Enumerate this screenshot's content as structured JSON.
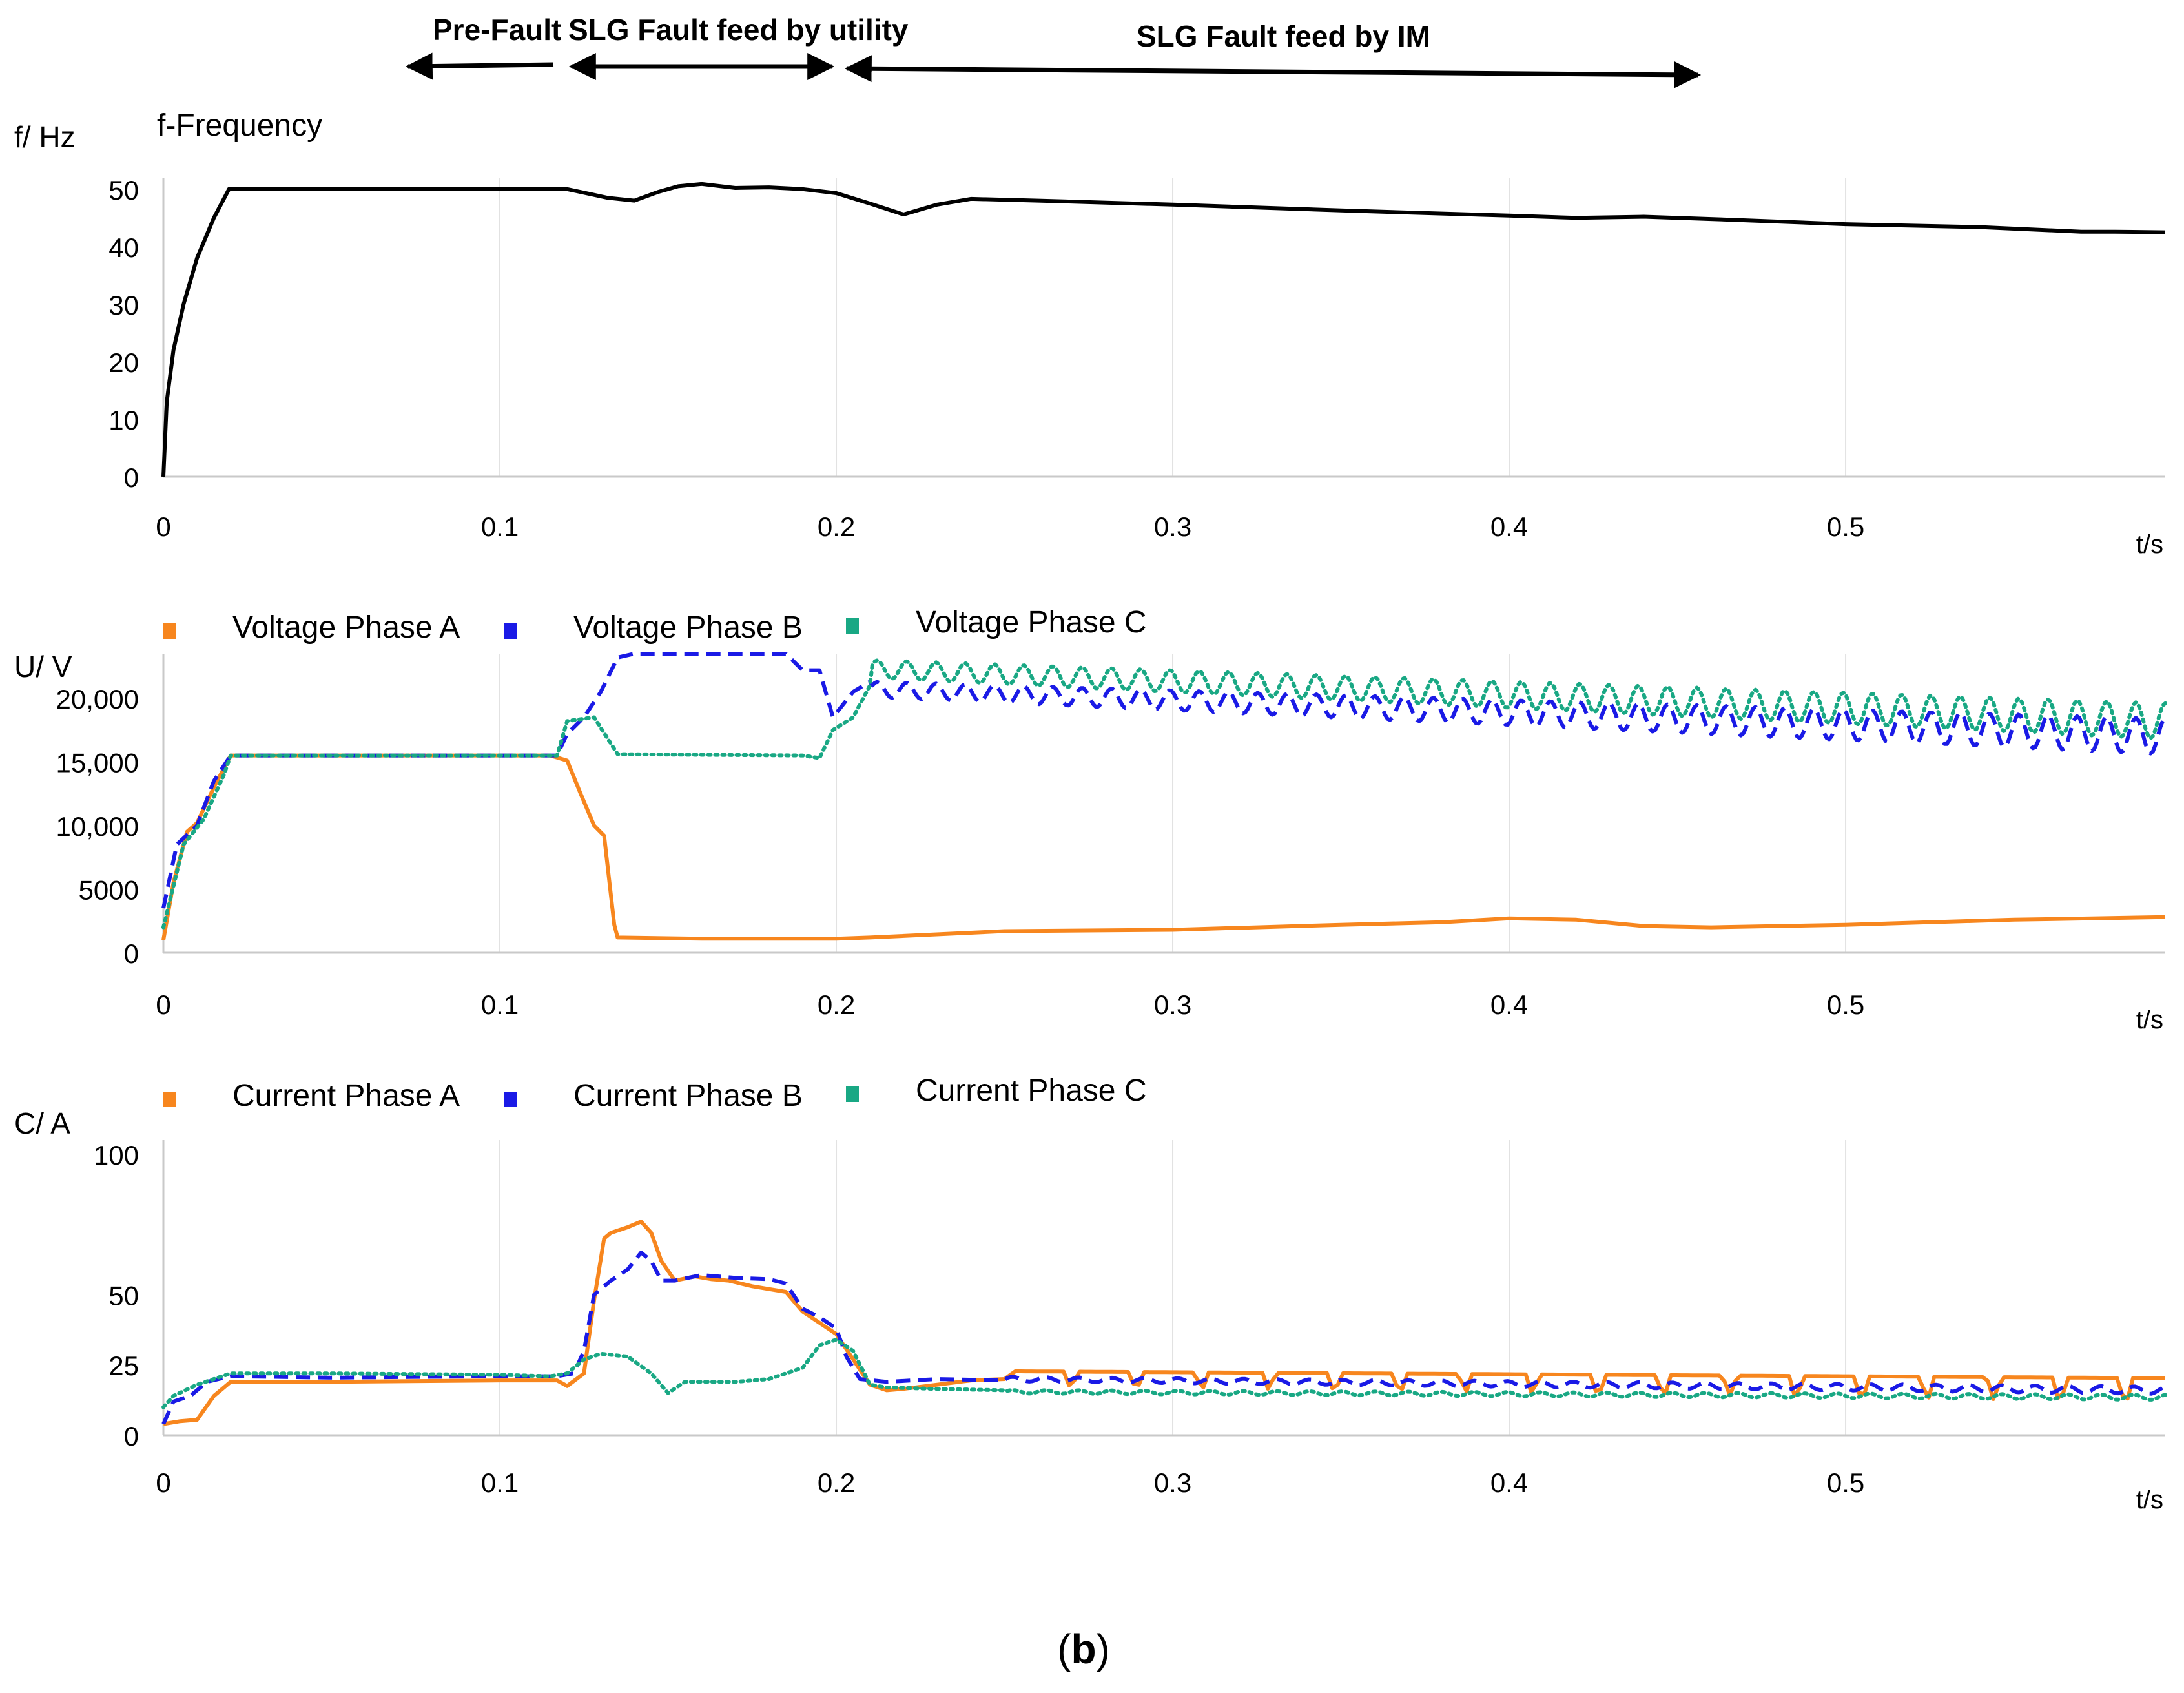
{
  "figure": {
    "caption_paren_open": "(",
    "caption_letter": "b",
    "caption_paren_close": ")"
  },
  "annotations": {
    "pre_fault": "Pre-Fault",
    "fault_utility": "SLG Fault feed by utility",
    "fault_im": "SLG Fault feed by IM"
  },
  "colors": {
    "phase_a": "#f7861e",
    "phase_b": "#1a1ae6",
    "phase_c": "#19a884",
    "frequency": "#000000",
    "grid": "#e2e2e2",
    "axis": "#c9c9c9"
  },
  "chart_data": [
    {
      "id": "freq",
      "type": "line",
      "title": "f-Frequency",
      "ylabel": "f/ Hz",
      "xlabel": "t/s",
      "xlim": [
        0,
        0.595
      ],
      "ylim": [
        0,
        52
      ],
      "xticks": [
        0,
        0.1,
        0.2,
        0.3,
        0.4,
        0.5
      ],
      "xtick_labels": [
        "0",
        "0.1",
        "0.2",
        "0.3",
        "0.4",
        "0.5"
      ],
      "yticks": [
        0,
        10,
        20,
        30,
        40,
        50
      ],
      "ytick_labels": [
        "0",
        "10",
        "20",
        "30",
        "40",
        "50"
      ],
      "legend": [],
      "series": [
        {
          "name": "f-Frequency",
          "color": "#000000",
          "style": "solid",
          "points": [
            [
              0,
              0
            ],
            [
              0.001,
              13
            ],
            [
              0.003,
              22
            ],
            [
              0.006,
              30
            ],
            [
              0.01,
              38
            ],
            [
              0.015,
              45
            ],
            [
              0.0195,
              50
            ],
            [
              0.05,
              50
            ],
            [
              0.1,
              50
            ],
            [
              0.12,
              50
            ],
            [
              0.128,
              49
            ],
            [
              0.132,
              48.5
            ],
            [
              0.14,
              48
            ],
            [
              0.147,
              49.5
            ],
            [
              0.153,
              50.5
            ],
            [
              0.16,
              50.9
            ],
            [
              0.17,
              50.2
            ],
            [
              0.18,
              50.3
            ],
            [
              0.19,
              50
            ],
            [
              0.2,
              49.3
            ],
            [
              0.21,
              47.5
            ],
            [
              0.22,
              45.6
            ],
            [
              0.23,
              47.3
            ],
            [
              0.24,
              48.3
            ],
            [
              0.26,
              48
            ],
            [
              0.3,
              47.3
            ],
            [
              0.35,
              46.3
            ],
            [
              0.4,
              45.4
            ],
            [
              0.42,
              45
            ],
            [
              0.44,
              45.2
            ],
            [
              0.46,
              44.8
            ],
            [
              0.5,
              43.9
            ],
            [
              0.54,
              43.4
            ],
            [
              0.57,
              42.6
            ],
            [
              0.58,
              42.6
            ],
            [
              0.595,
              42.5
            ]
          ]
        }
      ]
    },
    {
      "id": "voltage",
      "type": "line",
      "title": "",
      "ylabel": "U/ V",
      "xlabel": "t/s",
      "xlim": [
        0,
        0.595
      ],
      "ylim": [
        0,
        23500
      ],
      "xticks": [
        0,
        0.1,
        0.2,
        0.3,
        0.4,
        0.5
      ],
      "xtick_labels": [
        "0",
        "0.1",
        "0.2",
        "0.3",
        "0.4",
        "0.5"
      ],
      "yticks": [
        0,
        5000,
        10000,
        15000,
        20000
      ],
      "ytick_labels": [
        "0",
        "5000",
        "10,000",
        "15,000",
        "20,000"
      ],
      "legend": [
        "Voltage Phase A",
        "Voltage Phase B",
        "Voltage Phase C"
      ],
      "series": [
        {
          "name": "Voltage Phase A",
          "color": "#f7861e",
          "style": "solid",
          "points": [
            [
              0,
              1000
            ],
            [
              0.003,
              5500
            ],
            [
              0.007,
              9500
            ],
            [
              0.01,
              10200
            ],
            [
              0.015,
              13000
            ],
            [
              0.02,
              15500
            ],
            [
              0.05,
              15500
            ],
            [
              0.1,
              15500
            ],
            [
              0.115,
              15500
            ],
            [
              0.12,
              15100
            ],
            [
              0.124,
              12500
            ],
            [
              0.128,
              10000
            ],
            [
              0.131,
              9200
            ],
            [
              0.134,
              2200
            ],
            [
              0.135,
              1200
            ],
            [
              0.16,
              1100
            ],
            [
              0.2,
              1100
            ],
            [
              0.21,
              1200
            ],
            [
              0.25,
              1700
            ],
            [
              0.3,
              1800
            ],
            [
              0.35,
              2200
            ],
            [
              0.38,
              2400
            ],
            [
              0.4,
              2700
            ],
            [
              0.42,
              2600
            ],
            [
              0.44,
              2100
            ],
            [
              0.46,
              2000
            ],
            [
              0.5,
              2200
            ],
            [
              0.55,
              2600
            ],
            [
              0.595,
              2800
            ]
          ]
        },
        {
          "name": "Voltage Phase B",
          "color": "#1a1ae6",
          "style": "dashed",
          "points": [
            [
              0,
              3500
            ],
            [
              0.004,
              8500
            ],
            [
              0.01,
              10000
            ],
            [
              0.015,
              13500
            ],
            [
              0.02,
              15500
            ],
            [
              0.1,
              15500
            ],
            [
              0.117,
              15500
            ],
            [
              0.12,
              17200
            ],
            [
              0.125,
              18500
            ],
            [
              0.13,
              20500
            ],
            [
              0.135,
              23200
            ],
            [
              0.14,
              23500
            ],
            [
              0.185,
              23500
            ],
            [
              0.19,
              22200
            ],
            [
              0.195,
              22200
            ],
            [
              0.199,
              18500
            ],
            [
              0.205,
              20500
            ],
            [
              0.21,
              21300
            ]
          ],
          "osc": {
            "from": 0.21,
            "to": 0.595,
            "period": 0.0087,
            "mean": [
              20700,
              17000
            ],
            "amp": [
              600,
              1400
            ]
          }
        },
        {
          "name": "Voltage Phase C",
          "color": "#19a884",
          "style": "dotted",
          "points": [
            [
              0,
              2000
            ],
            [
              0.006,
              8500
            ],
            [
              0.012,
              10500
            ],
            [
              0.018,
              14000
            ],
            [
              0.02,
              15500
            ],
            [
              0.1,
              15500
            ],
            [
              0.117,
              15500
            ],
            [
              0.12,
              18200
            ],
            [
              0.128,
              18500
            ],
            [
              0.135,
              15600
            ],
            [
              0.19,
              15500
            ],
            [
              0.195,
              15300
            ],
            [
              0.199,
              17500
            ],
            [
              0.205,
              18500
            ],
            [
              0.21,
              21000
            ]
          ],
          "osc": {
            "from": 0.21,
            "to": 0.595,
            "period": 0.0087,
            "mean": [
              22300,
              18200
            ],
            "amp": [
              700,
              1400
            ]
          }
        }
      ]
    },
    {
      "id": "current",
      "type": "line",
      "title": "",
      "ylabel": "C/ A",
      "xlabel": "t/s",
      "xlim": [
        0,
        0.595
      ],
      "ylim": [
        0,
        105
      ],
      "xticks": [
        0,
        0.1,
        0.2,
        0.3,
        0.4,
        0.5
      ],
      "xtick_labels": [
        "0",
        "0.1",
        "0.2",
        "0.3",
        "0.4",
        "0.5"
      ],
      "yticks": [
        0,
        25,
        50,
        100
      ],
      "ytick_labels": [
        "0",
        "25",
        "50",
        "100"
      ],
      "tick_positions": [
        0,
        0.14,
        0.3,
        0.575
      ],
      "legend": [
        "Current Phase A",
        "Current Phase B",
        "Current Phase C"
      ],
      "series": [
        {
          "name": "Current Phase A",
          "color": "#f7861e",
          "style": "solid",
          "points": [
            [
              0,
              4
            ],
            [
              0.005,
              5
            ],
            [
              0.01,
              5.5
            ],
            [
              0.015,
              14
            ],
            [
              0.02,
              19
            ],
            [
              0.05,
              19
            ],
            [
              0.1,
              19.5
            ],
            [
              0.117,
              19.5
            ],
            [
              0.12,
              17.5
            ],
            [
              0.125,
              22
            ],
            [
              0.128,
              48
            ],
            [
              0.131,
              70
            ],
            [
              0.133,
              72
            ],
            [
              0.138,
              74
            ],
            [
              0.142,
              76
            ],
            [
              0.145,
              72
            ],
            [
              0.148,
              62
            ],
            [
              0.152,
              55
            ],
            [
              0.158,
              56.5
            ],
            [
              0.163,
              55.5
            ],
            [
              0.168,
              55
            ],
            [
              0.175,
              53
            ],
            [
              0.18,
              52
            ],
            [
              0.185,
              51
            ],
            [
              0.19,
              44
            ],
            [
              0.195,
              40
            ],
            [
              0.2,
              36
            ],
            [
              0.205,
              27
            ],
            [
              0.21,
              18
            ],
            [
              0.215,
              16
            ],
            [
              0.22,
              16.5
            ],
            [
              0.23,
              18
            ],
            [
              0.24,
              19.5
            ],
            [
              0.25,
              20
            ]
          ],
          "osc": {
            "from": 0.25,
            "to": 0.595,
            "period": 0.0196,
            "mean": [
              22,
              19
            ],
            "amp": [
              1.3,
              2.2
            ],
            "dip": true
          }
        },
        {
          "name": "Current Phase B",
          "color": "#1a1ae6",
          "style": "dashed",
          "points": [
            [
              0,
              4
            ],
            [
              0.003,
              12
            ],
            [
              0.008,
              14
            ],
            [
              0.013,
              19
            ],
            [
              0.02,
              21
            ],
            [
              0.05,
              20.5
            ],
            [
              0.1,
              21
            ],
            [
              0.117,
              21
            ],
            [
              0.122,
              22
            ],
            [
              0.125,
              30
            ],
            [
              0.128,
              50
            ],
            [
              0.133,
              55
            ],
            [
              0.138,
              59
            ],
            [
              0.142,
              65
            ],
            [
              0.145,
              62
            ],
            [
              0.148,
              55
            ],
            [
              0.152,
              55
            ],
            [
              0.16,
              57
            ],
            [
              0.17,
              56
            ],
            [
              0.18,
              55.5
            ],
            [
              0.185,
              54
            ],
            [
              0.19,
              45
            ],
            [
              0.195,
              42
            ],
            [
              0.2,
              38
            ],
            [
              0.203,
              28
            ],
            [
              0.207,
              20
            ],
            [
              0.215,
              19
            ],
            [
              0.23,
              20
            ],
            [
              0.25,
              19.5
            ]
          ],
          "osc": {
            "from": 0.25,
            "to": 0.595,
            "period": 0.0098,
            "mean": [
              20,
              16
            ],
            "amp": [
              0.8,
              1.3
            ]
          }
        },
        {
          "name": "Current Phase C",
          "color": "#19a884",
          "style": "dotted",
          "points": [
            [
              0,
              10
            ],
            [
              0.003,
              14
            ],
            [
              0.01,
              18
            ],
            [
              0.02,
              22
            ],
            [
              0.05,
              22
            ],
            [
              0.1,
              21.5
            ],
            [
              0.115,
              21
            ],
            [
              0.12,
              22
            ],
            [
              0.125,
              27
            ],
            [
              0.13,
              29
            ],
            [
              0.138,
              28
            ],
            [
              0.145,
              22
            ],
            [
              0.15,
              15
            ],
            [
              0.155,
              19
            ],
            [
              0.17,
              19
            ],
            [
              0.18,
              20
            ],
            [
              0.19,
              24
            ],
            [
              0.195,
              32
            ],
            [
              0.2,
              34
            ],
            [
              0.205,
              30
            ],
            [
              0.21,
              18
            ],
            [
              0.215,
              17
            ],
            [
              0.23,
              16.5
            ],
            [
              0.25,
              16
            ]
          ],
          "osc": {
            "from": 0.25,
            "to": 0.595,
            "period": 0.0098,
            "mean": [
              15.5,
              13.5
            ],
            "amp": [
              0.6,
              0.9
            ]
          }
        }
      ]
    }
  ]
}
